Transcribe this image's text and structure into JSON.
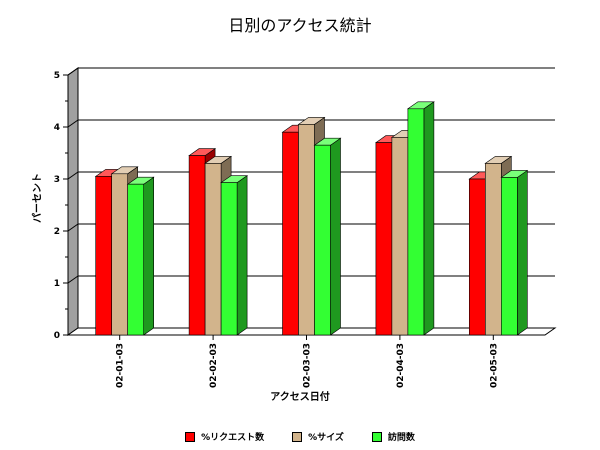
{
  "chart_data": {
    "type": "bar",
    "title": "日別のアクセス統計",
    "xlabel": "アクセス日付",
    "ylabel": "パーセント",
    "categories": [
      "02-01-03",
      "02-02-03",
      "02-03-03",
      "02-04-03",
      "02-05-03"
    ],
    "series": [
      {
        "name": "%リクエスト数",
        "color": "#ff0000",
        "values": [
          3.05,
          3.45,
          3.9,
          3.7,
          3.0
        ]
      },
      {
        "name": "%サイズ",
        "color": "#d2b48c",
        "values": [
          3.1,
          3.3,
          4.05,
          3.8,
          3.3
        ]
      },
      {
        "name": "訪問数",
        "color": "#33ff33",
        "values": [
          2.9,
          2.93,
          3.65,
          4.35,
          3.03
        ]
      }
    ],
    "ylim": [
      0,
      5
    ],
    "yticks": [
      "0",
      "1",
      "2",
      "3",
      "4",
      "5"
    ],
    "grid": true,
    "legend_position": "bottom"
  }
}
